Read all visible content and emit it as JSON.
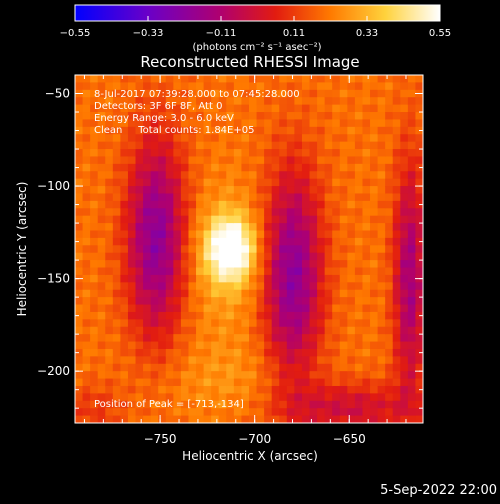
{
  "chart_data": {
    "type": "heatmap",
    "title": "Reconstructed RHESSI Image",
    "xlabel": "Heliocentric X (arcsec)",
    "ylabel": "Heliocentric Y (arcsec)",
    "xlim": [
      -795,
      -611
    ],
    "ylim": [
      -228,
      -40
    ],
    "xticks": [
      {
        "value": -750,
        "label": "−750"
      },
      {
        "value": -700,
        "label": "−700"
      },
      {
        "value": -650,
        "label": "−650"
      }
    ],
    "yticks": [
      {
        "value": -50,
        "label": "−50"
      },
      {
        "value": -100,
        "label": "−100"
      },
      {
        "value": -150,
        "label": "−150"
      },
      {
        "value": -200,
        "label": "−200"
      }
    ],
    "colorbar": {
      "min": -0.55,
      "max": 0.55,
      "ticks": [
        {
          "value": -0.55,
          "label": "−0.55"
        },
        {
          "value": -0.33,
          "label": "−0.33"
        },
        {
          "value": -0.11,
          "label": "−0.11"
        },
        {
          "value": 0.11,
          "label": "0.11"
        },
        {
          "value": 0.33,
          "label": "0.33"
        },
        {
          "value": 0.55,
          "label": "0.55"
        }
      ],
      "units": "(photons cm⁻² s⁻¹ asec⁻²)"
    },
    "annotations": {
      "time_range": "8-Jul-2017 07:39:28.000 to 07:45:28.000",
      "detectors": "Detectors: 3F 6F 8F, Att 0",
      "energy": "Energy Range: 3.0 - 6.0 keV",
      "clean": "Clean     Total counts: 1.84E+05",
      "peak": "Position of Peak = [-713,-134]"
    },
    "peak": {
      "x": -713,
      "y": -134,
      "value": 0.55
    },
    "footer_date": "5-Sep-2022 22:00",
    "colors": {
      "scale": [
        "#0000ff",
        "#6a00c8",
        "#b0006e",
        "#e21c10",
        "#ff7a00",
        "#ffd23c",
        "#ffffff"
      ]
    },
    "grid": false
  }
}
